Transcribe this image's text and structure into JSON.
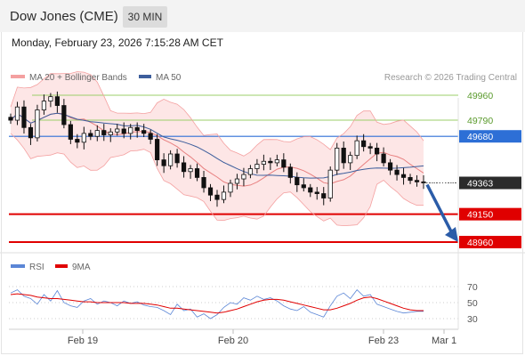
{
  "header": {
    "title": "Dow Jones (CME)",
    "timeframe": "30 MIN"
  },
  "datetime": "Monday, February 23, 2026 7:15:28 AM CET",
  "credit": "Research © 2026 Trading Central",
  "colors": {
    "bollinger": "#f4a0a0",
    "bollinger_fill": "#fde2e2",
    "ma50": "#3d5e9c",
    "candle": "#111111",
    "resistance": "#9bcf6a",
    "pivot": "#2d6fd6",
    "support": "#e00000",
    "arrow": "#2b5ca8",
    "rsi": "#5b86d6",
    "rsi_ma": "#e00000"
  },
  "chart_data": [
    {
      "type": "candlestick",
      "legend": [
        {
          "name": "MA 20 + Bollinger Bands",
          "color": "#f4a0a0"
        },
        {
          "name": "MA 50",
          "color": "#3d5e9c"
        }
      ],
      "x_ticks": [
        "Feb 19",
        "Feb 20",
        "Feb 23",
        "Mar 1"
      ],
      "ylim": [
        48900,
        50050
      ],
      "levels": [
        {
          "value": 49960,
          "label": "49960",
          "kind": "resistance"
        },
        {
          "value": 49790,
          "label": "49790",
          "kind": "resistance"
        },
        {
          "value": 49680,
          "label": "49680",
          "kind": "pivot"
        },
        {
          "value": 49363,
          "label": "49363",
          "kind": "last"
        },
        {
          "value": 49150,
          "label": "49150",
          "kind": "support"
        },
        {
          "value": 48960,
          "label": "48960",
          "kind": "support"
        }
      ],
      "projection_target": 48960,
      "close_series": [
        49790,
        49880,
        49740,
        49670,
        49860,
        49920,
        49950,
        49890,
        49760,
        49660,
        49640,
        49700,
        49680,
        49720,
        49690,
        49710,
        49730,
        49700,
        49740,
        49720,
        49700,
        49660,
        49520,
        49480,
        49560,
        49500,
        49440,
        49460,
        49400,
        49330,
        49280,
        49250,
        49300,
        49360,
        49390,
        49420,
        49460,
        49490,
        49510,
        49500,
        49520,
        49470,
        49400,
        49350,
        49330,
        49300,
        49290,
        49260,
        49450,
        49600,
        49500,
        49550,
        49650,
        49610,
        49600,
        49560,
        49500,
        49450,
        49420,
        49400,
        49380,
        49370,
        49363
      ]
    },
    {
      "type": "line",
      "series": [
        {
          "name": "RSI",
          "color": "#5b86d6"
        },
        {
          "name": "9MA",
          "color": "#e00000"
        }
      ],
      "ylim": [
        20,
        80
      ],
      "y_ticks": [
        "70",
        "50",
        "30"
      ],
      "rsi_series": [
        62,
        66,
        58,
        55,
        48,
        60,
        52,
        65,
        50,
        46,
        44,
        52,
        55,
        48,
        52,
        50,
        46,
        52,
        49,
        51,
        47,
        45,
        44,
        40,
        35,
        48,
        40,
        42,
        32,
        36,
        30,
        35,
        44,
        50,
        48,
        56,
        53,
        58,
        54,
        56,
        52,
        46,
        42,
        40,
        45,
        38,
        35,
        32,
        46,
        58,
        62,
        55,
        66,
        58,
        60,
        48,
        45,
        42,
        39,
        37,
        38,
        39,
        39
      ],
      "rsi_ma_series": [
        60,
        61,
        60,
        59,
        57,
        56,
        55,
        55,
        54,
        53,
        52,
        51,
        51,
        50,
        50,
        50,
        50,
        50,
        49,
        49,
        49,
        48,
        47,
        45,
        43,
        43,
        42,
        41,
        40,
        39,
        38,
        37,
        38,
        40,
        42,
        45,
        48,
        51,
        53,
        54,
        54,
        53,
        51,
        49,
        47,
        45,
        43,
        41,
        41,
        43,
        46,
        49,
        53,
        56,
        57,
        55,
        52,
        49,
        46,
        43,
        41,
        40,
        40
      ]
    }
  ]
}
